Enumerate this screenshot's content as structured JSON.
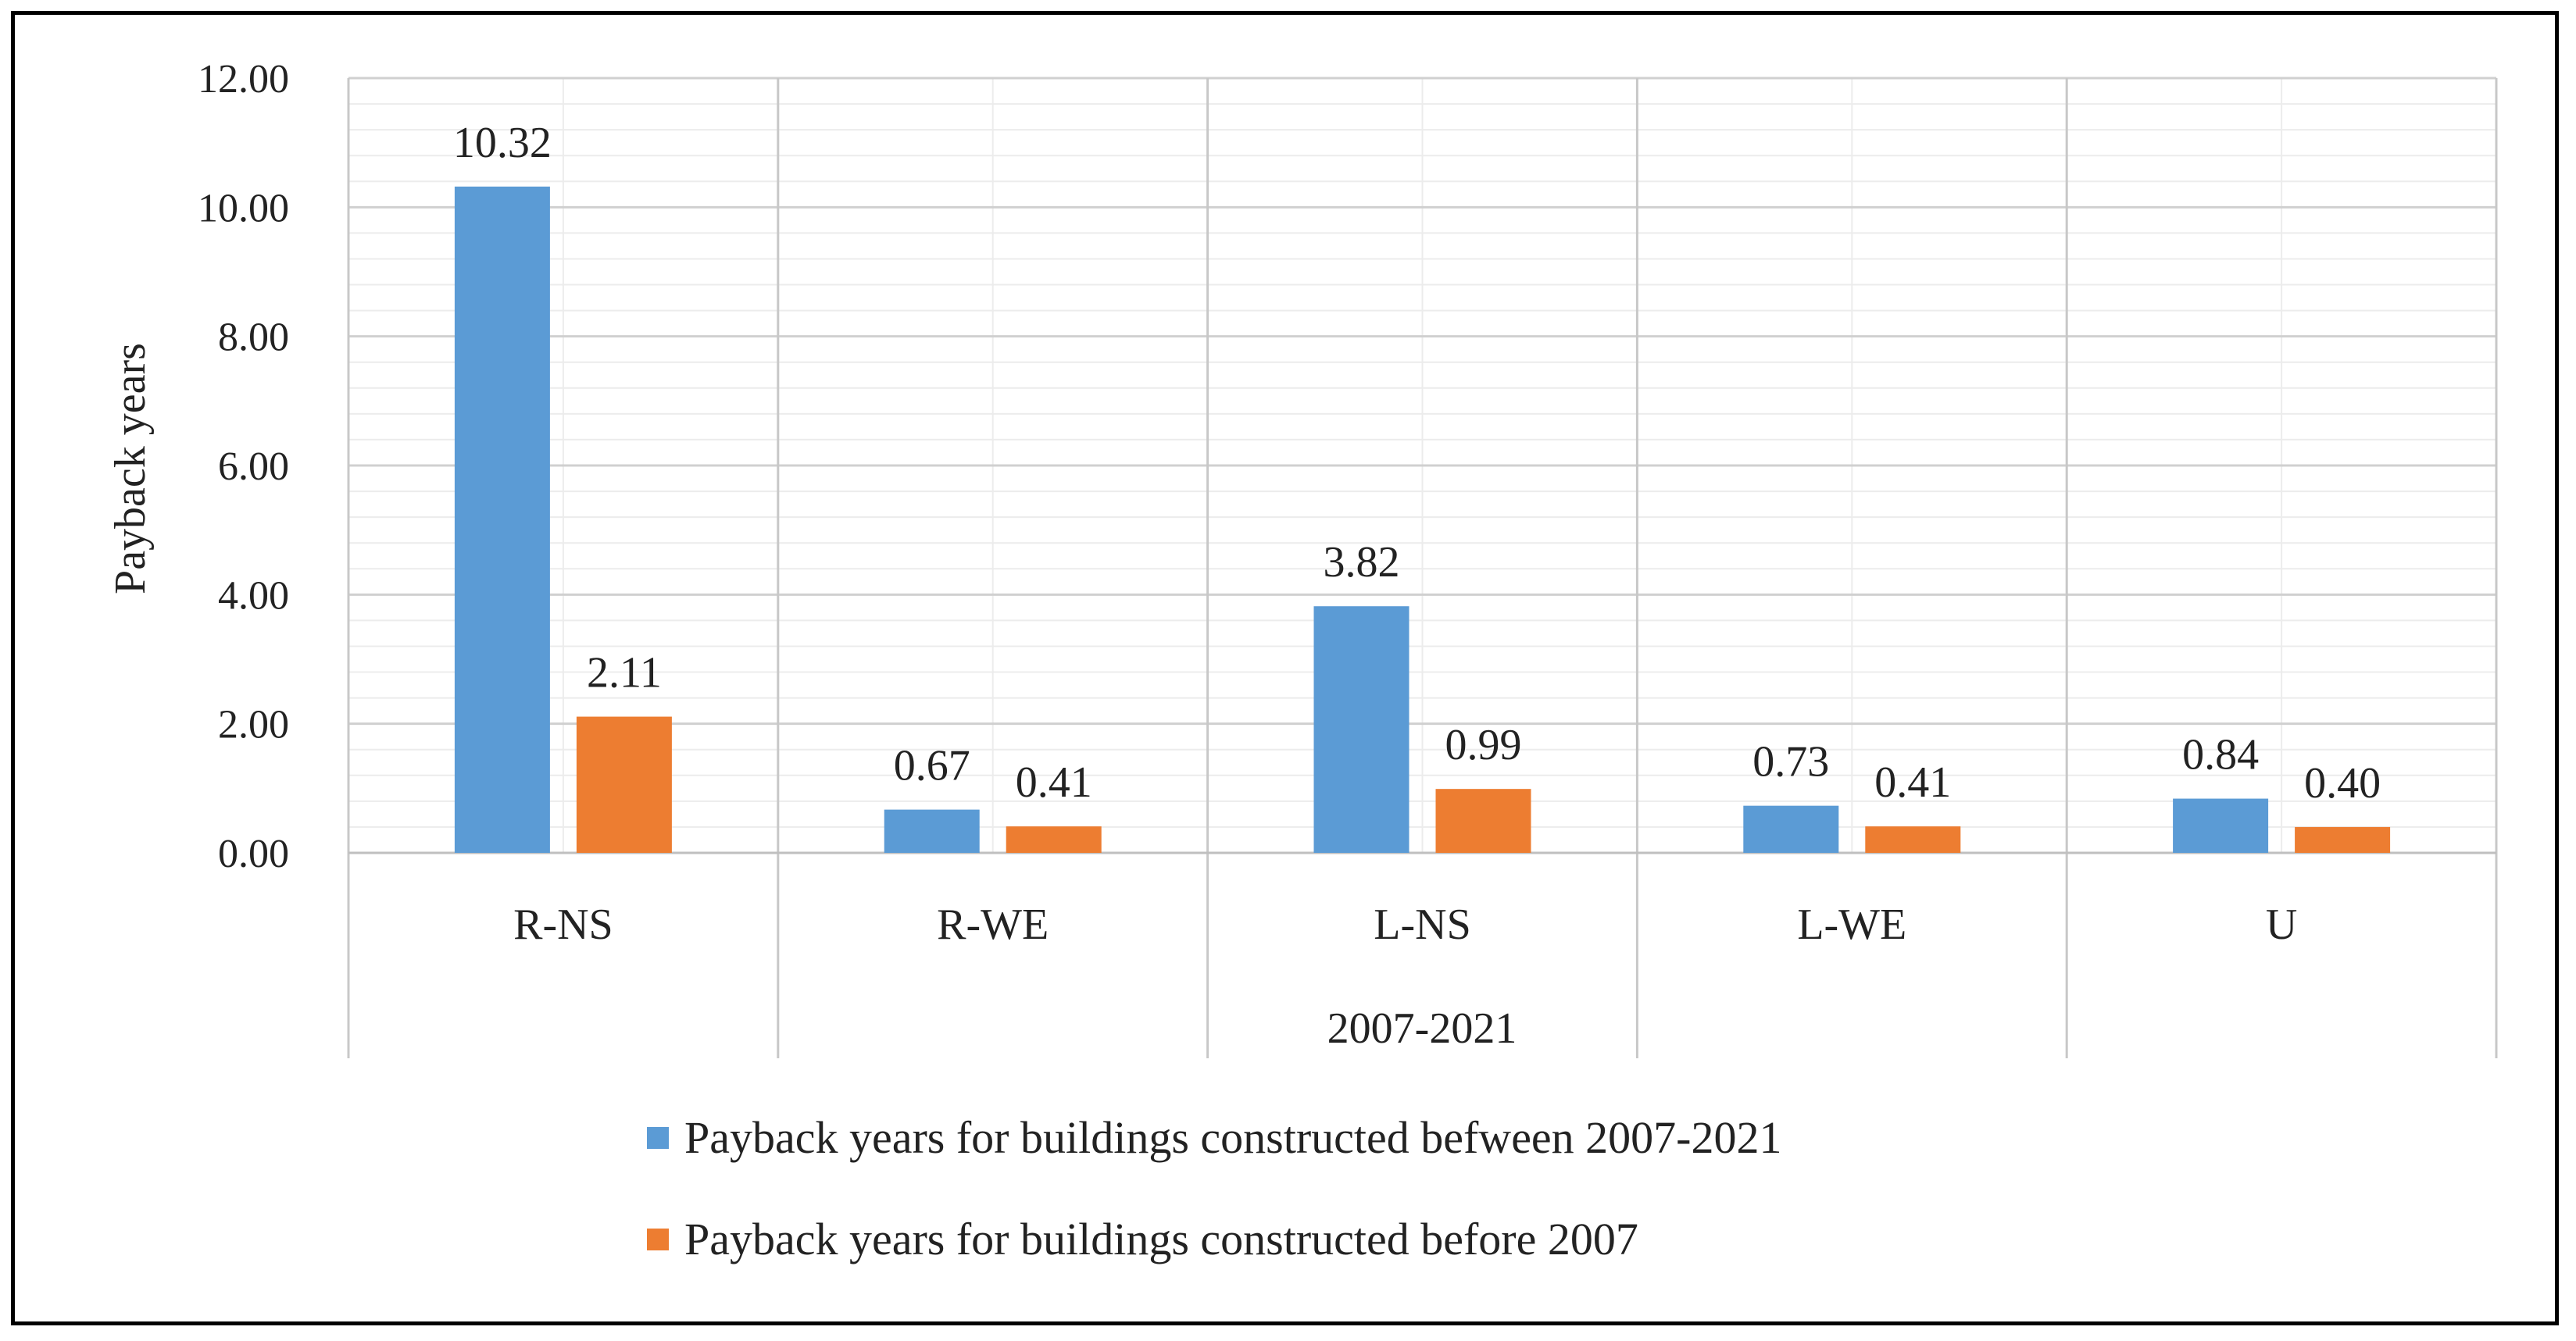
{
  "chart_data": {
    "type": "bar",
    "title": "",
    "ylabel": "Payback years",
    "xlabel": "2007-2021",
    "ylim": [
      0,
      12
    ],
    "ytick_step": 2,
    "ytick_labels": [
      "0.00",
      "2.00",
      "4.00",
      "6.00",
      "8.00",
      "10.00",
      "12.00"
    ],
    "categories": [
      "R-NS",
      "R-WE",
      "L-NS",
      "L-WE",
      "U"
    ],
    "series": [
      {
        "name": "Payback years for buildings constructed befween 2007-2021",
        "color": "#5B9BD5",
        "values": [
          10.32,
          0.67,
          3.82,
          0.73,
          0.84
        ],
        "labels": [
          "10.32",
          "0.67",
          "3.82",
          "0.73",
          "0.84"
        ]
      },
      {
        "name": "Payback years for buildings constructed before 2007",
        "color": "#ED7D31",
        "values": [
          2.11,
          0.41,
          0.99,
          0.41,
          0.4
        ],
        "labels": [
          "2.11",
          "0.41",
          "0.99",
          "0.41",
          "0.40"
        ]
      }
    ],
    "grid": true,
    "legend_position": "bottom"
  }
}
